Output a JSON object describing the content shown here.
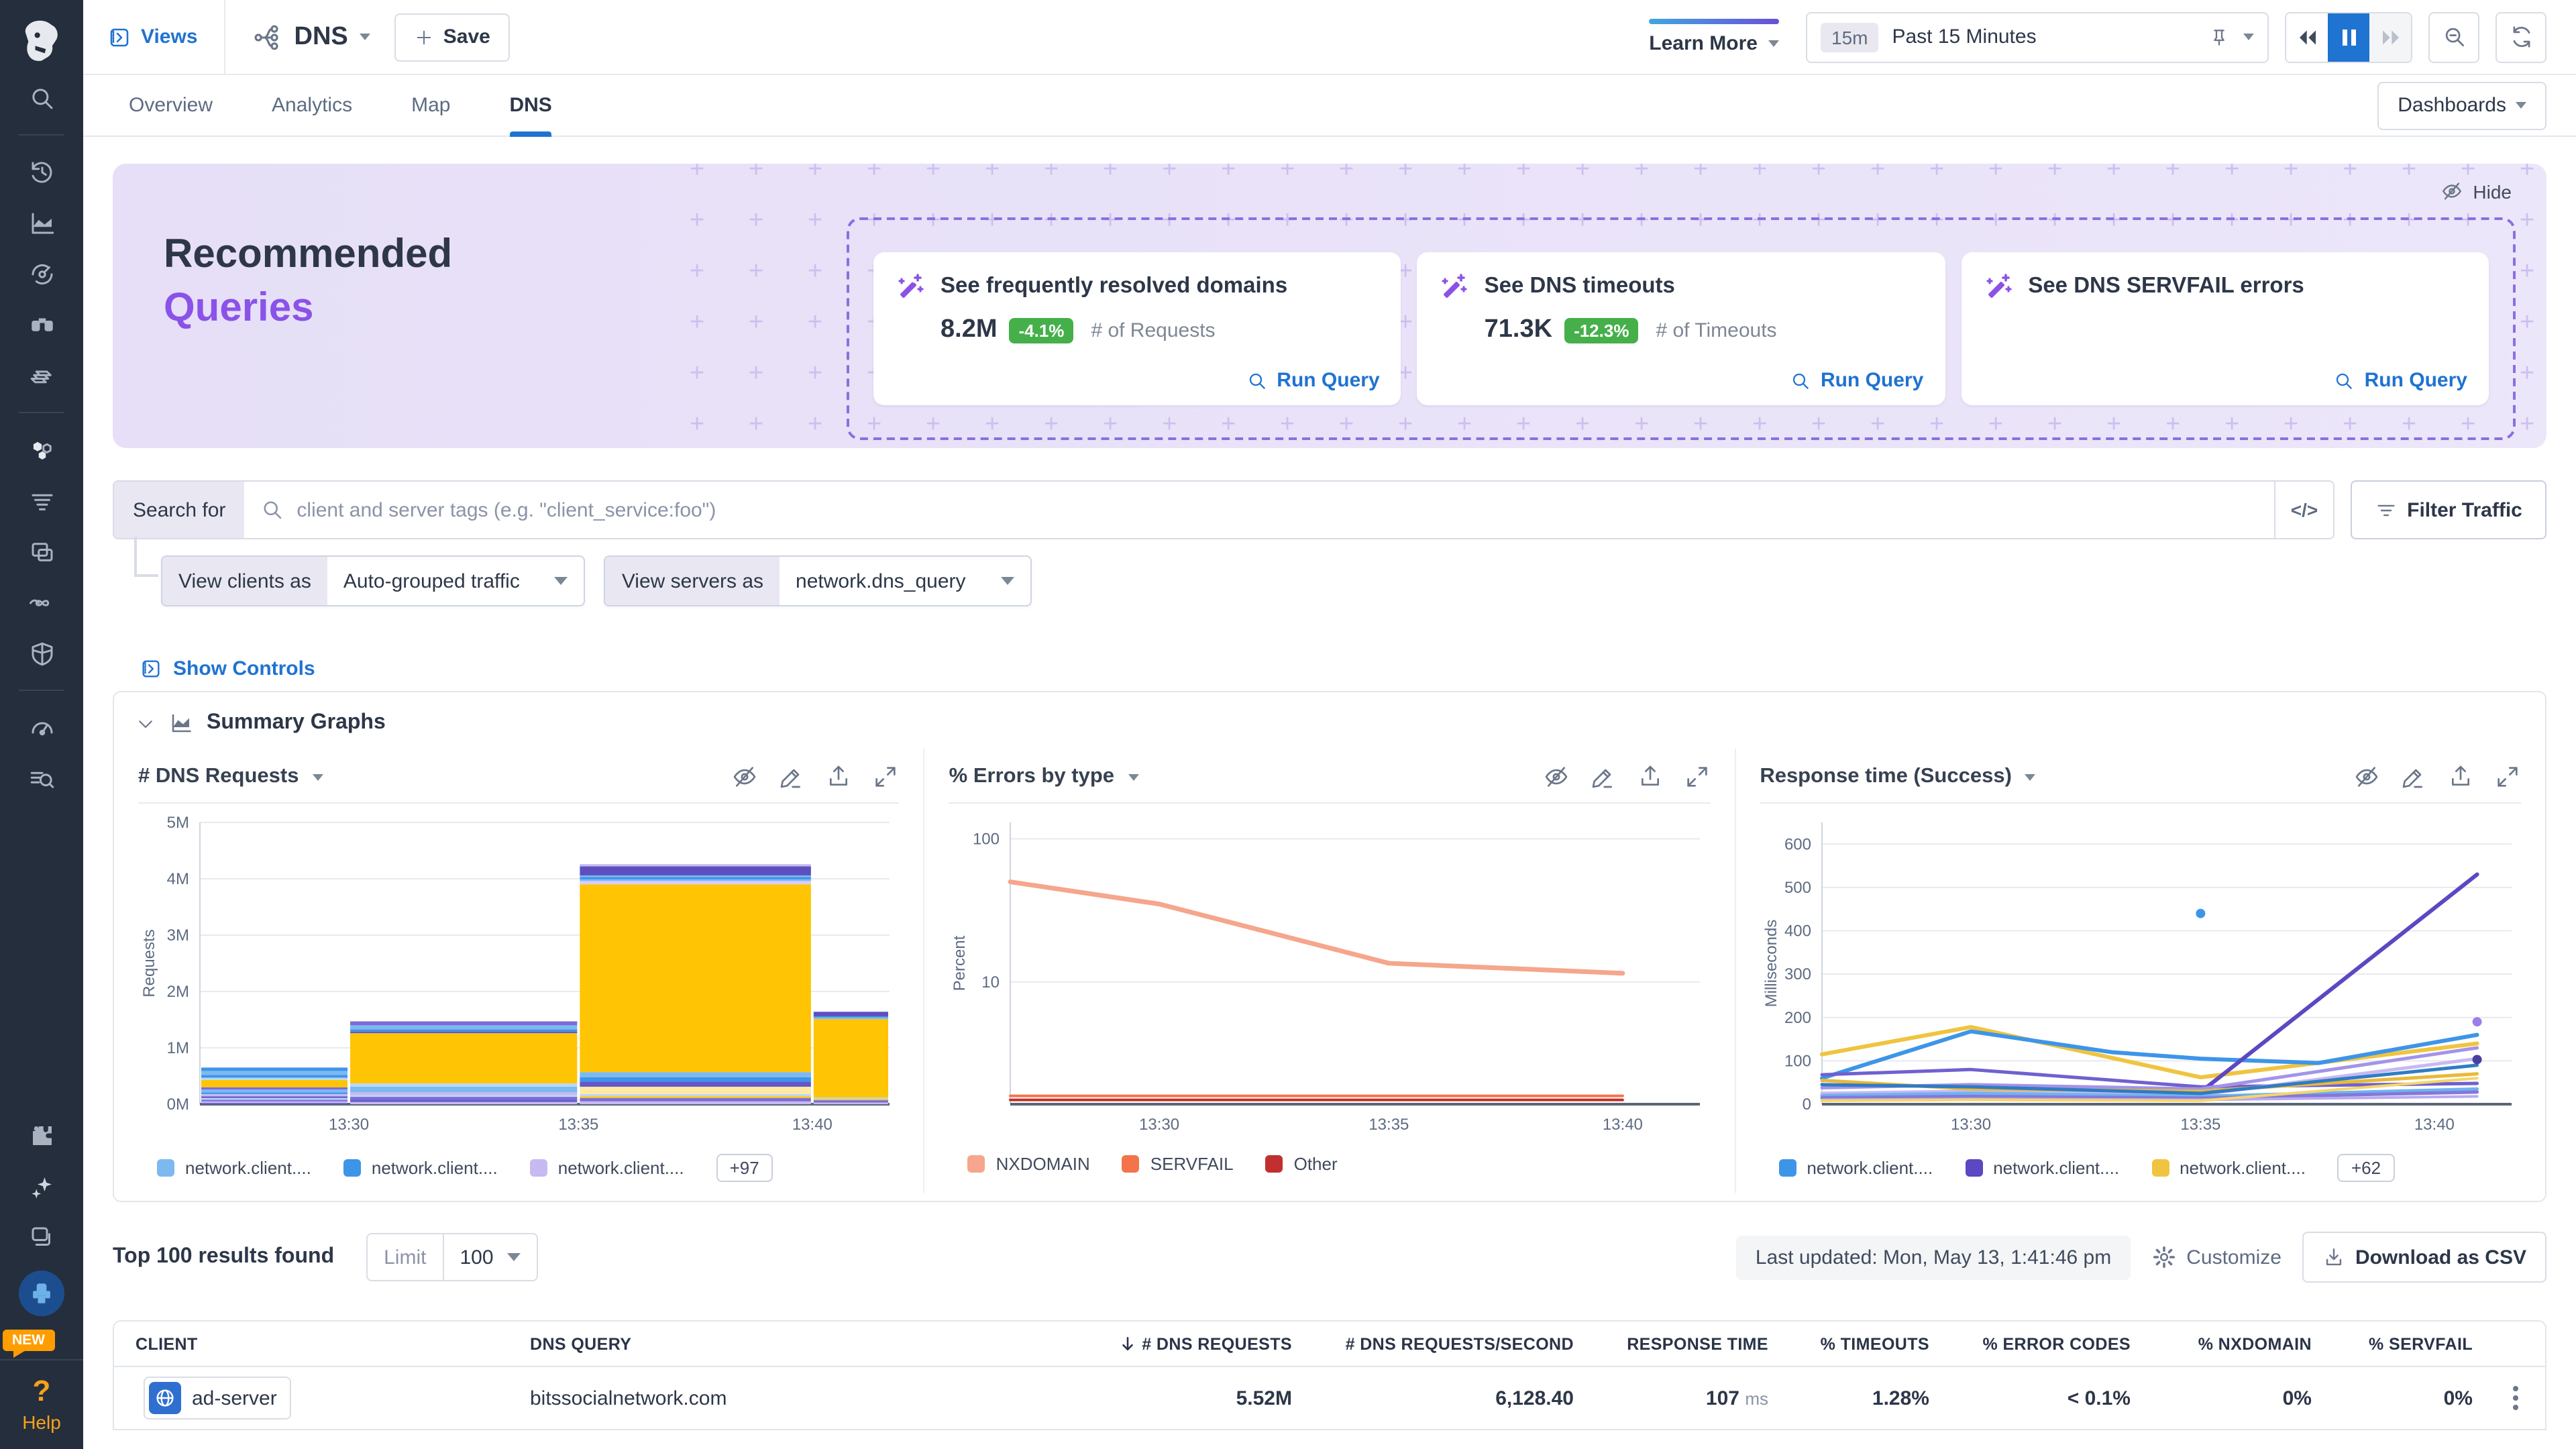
{
  "topbar": {
    "views_label": "Views",
    "view_name": "DNS",
    "save_label": "Save",
    "learn_more_label": "Learn More",
    "time_duration": "15m",
    "time_label": "Past 15 Minutes"
  },
  "tabs": {
    "items": [
      "Overview",
      "Analytics",
      "Map",
      "DNS"
    ],
    "active": "DNS",
    "dashboards_label": "Dashboards"
  },
  "banner": {
    "title_line1": "Recommended",
    "title_line2": "Queries",
    "hide_label": "Hide",
    "cards": [
      {
        "title": "See frequently resolved domains",
        "value": "8.2M",
        "delta": "-4.1%",
        "metric_label": "# of Requests",
        "action_label": "Run Query"
      },
      {
        "title": "See DNS timeouts",
        "value": "71.3K",
        "delta": "-12.3%",
        "metric_label": "# of Timeouts",
        "action_label": "Run Query"
      },
      {
        "title": "See DNS SERVFAIL errors",
        "value": "",
        "delta": "",
        "metric_label": "",
        "action_label": "Run Query"
      }
    ]
  },
  "search": {
    "label": "Search for",
    "placeholder": "client and server tags (e.g. \"client_service:foo\")",
    "code_button": "</>",
    "filter_button": "Filter Traffic",
    "view_clients_label": "View clients as",
    "view_clients_value": "Auto-grouped traffic",
    "view_servers_label": "View servers as",
    "view_servers_value": "network.dns_query"
  },
  "controls": {
    "show_controls": "Show Controls",
    "summary_graphs": "Summary Graphs"
  },
  "chart_data": [
    {
      "type": "bar",
      "title": "# DNS Requests",
      "ylabel": "Requests",
      "ylim": [
        0,
        5
      ],
      "yticks": [
        {
          "v": 0,
          "label": "0M"
        },
        {
          "v": 1,
          "label": "1M"
        },
        {
          "v": 2,
          "label": "2M"
        },
        {
          "v": 3,
          "label": "3M"
        },
        {
          "v": 4,
          "label": "4M"
        },
        {
          "v": 5,
          "label": "5M"
        }
      ],
      "xticks": [
        {
          "label": "13:30",
          "f": 0.216
        },
        {
          "label": "13:35",
          "f": 0.549
        },
        {
          "label": "13:40",
          "f": 0.888
        }
      ],
      "bar_edges": [
        0,
        0.216,
        0.549,
        0.888,
        1.0
      ],
      "bars": [
        {
          "segments": [
            [
              "#6457c9",
              0.02
            ],
            [
              "#c7b9f2",
              0.03
            ],
            [
              "#7b6bd6",
              0.03
            ],
            [
              "#b7d8f7",
              0.03
            ],
            [
              "#6457c9",
              0.03
            ],
            [
              "#c7b9f2",
              0.04
            ],
            [
              "#3d95e8",
              0.03
            ],
            [
              "#7db9f0",
              0.05
            ],
            [
              "#7b6bd6",
              0.04
            ],
            [
              "#ffc403",
              0.13
            ],
            [
              "#b7d8f7",
              0.04
            ],
            [
              "#3d95e8",
              0.05
            ],
            [
              "#7db9f0",
              0.07
            ],
            [
              "#3d95e8",
              0.06
            ]
          ]
        },
        {
          "segments": [
            [
              "#c7b9f2",
              0.04
            ],
            [
              "#6457c9",
              0.04
            ],
            [
              "#7b6bd6",
              0.05
            ],
            [
              "#b7d8f7",
              0.03
            ],
            [
              "#c7b9f2",
              0.05
            ],
            [
              "#7db9f0",
              0.1
            ],
            [
              "#b7d8f7",
              0.06
            ],
            [
              "#ffc403",
              0.89
            ],
            [
              "#6457c9",
              0.03
            ],
            [
              "#3d95e8",
              0.04
            ],
            [
              "#7db9f0",
              0.07
            ],
            [
              "#7b6bd6",
              0.07
            ]
          ]
        },
        {
          "segments": [
            [
              "#c7b9f2",
              0.05
            ],
            [
              "#7b6bd6",
              0.06
            ],
            [
              "#ffc403",
              0.03
            ],
            [
              "#b7d8f7",
              0.04
            ],
            [
              "#ffe9a3",
              0.13
            ],
            [
              "#6457c9",
              0.09
            ],
            [
              "#3d95e8",
              0.08
            ],
            [
              "#7db9f0",
              0.09
            ],
            [
              "#ffc403",
              3.33
            ],
            [
              "#d9cdf6",
              0.06
            ],
            [
              "#7db9f0",
              0.03
            ],
            [
              "#3d95e8",
              0.04
            ],
            [
              "#7db9f0",
              0.03
            ],
            [
              "#5c50c0",
              0.16
            ],
            [
              "#c7b9f2",
              0.04
            ]
          ]
        },
        {
          "segments": [
            [
              "#c7b9f2",
              0.03
            ],
            [
              "#7b6bd6",
              0.04
            ],
            [
              "#ffc403",
              0.02
            ],
            [
              "#b7d8f7",
              0.03
            ],
            [
              "#ffc403",
              1.39
            ],
            [
              "#7db9f0",
              0.03
            ],
            [
              "#3d95e8",
              0.02
            ],
            [
              "#5c50c0",
              0.08
            ]
          ]
        }
      ],
      "legend": {
        "entries": [
          {
            "label": "network.client....",
            "color": "#7db9f0"
          },
          {
            "label": "network.client....",
            "color": "#3d95e8"
          },
          {
            "label": "network.client....",
            "color": "#c7b9f2"
          }
        ],
        "more": "+97"
      }
    },
    {
      "type": "line_log",
      "title": "% Errors by type",
      "ylabel": "Percent",
      "ylim_log": [
        1.4,
        130
      ],
      "yticks": [
        {
          "v": 10,
          "label": "10"
        },
        {
          "v": 100,
          "label": "100"
        }
      ],
      "xticks": [
        {
          "label": "13:30",
          "f": 0.216
        },
        {
          "label": "13:35",
          "f": 0.549
        },
        {
          "label": "13:40",
          "f": 0.888
        }
      ],
      "series": [
        {
          "name": "NXDOMAIN",
          "color": "#f5a68c",
          "width": 3.5,
          "points": [
            [
              0,
              50
            ],
            [
              0.216,
              35
            ],
            [
              0.549,
              13.5
            ],
            [
              0.888,
              11.5
            ]
          ]
        },
        {
          "name": "SERVFAIL",
          "color": "#f3744b",
          "width": 2,
          "points": [
            [
              0,
              1.6
            ],
            [
              0.888,
              1.6
            ]
          ]
        },
        {
          "name": "Other",
          "color": "#c22f2f",
          "width": 2,
          "points": [
            [
              0,
              1.5
            ],
            [
              0.888,
              1.5
            ]
          ]
        }
      ],
      "legend": {
        "entries": [
          {
            "label": "NXDOMAIN",
            "color": "#f5a68c"
          },
          {
            "label": "SERVFAIL",
            "color": "#f3744b"
          },
          {
            "label": "Other",
            "color": "#c22f2f"
          }
        ],
        "more": ""
      }
    },
    {
      "type": "line",
      "title": "Response time (Success)",
      "ylabel": "Milliseconds",
      "ylim": [
        0,
        650
      ],
      "yticks": [
        {
          "v": 0,
          "label": "0"
        },
        {
          "v": 100,
          "label": "100"
        },
        {
          "v": 200,
          "label": "200"
        },
        {
          "v": 300,
          "label": "300"
        },
        {
          "v": 400,
          "label": "400"
        },
        {
          "v": 500,
          "label": "500"
        },
        {
          "v": 600,
          "label": "600"
        }
      ],
      "xticks": [
        {
          "label": "13:30",
          "f": 0.216
        },
        {
          "label": "13:35",
          "f": 0.549
        },
        {
          "label": "13:40",
          "f": 0.888
        }
      ],
      "series": [
        {
          "color": "#f0c440",
          "width": 3,
          "points": [
            [
              0,
              115
            ],
            [
              0.216,
              178
            ],
            [
              0.549,
              62
            ],
            [
              0.95,
              140
            ]
          ]
        },
        {
          "color": "#3d95e8",
          "width": 3,
          "points": [
            [
              0,
              60
            ],
            [
              0.216,
              168
            ],
            [
              0.42,
              120
            ],
            [
              0.549,
              105
            ],
            [
              0.72,
              95
            ],
            [
              0.95,
              160
            ]
          ]
        },
        {
          "color": "#5b48c2",
          "width": 3,
          "points": [
            [
              0.549,
              28
            ],
            [
              0.95,
              530
            ]
          ]
        },
        {
          "color": "#6f61cf",
          "width": 2.5,
          "points": [
            [
              0,
              68
            ],
            [
              0.216,
              80
            ],
            [
              0.549,
              40
            ],
            [
              0.95,
              48
            ]
          ]
        },
        {
          "color": "#a393e8",
          "width": 2.5,
          "points": [
            [
              0,
              38
            ],
            [
              0.216,
              45
            ],
            [
              0.549,
              35
            ],
            [
              0.95,
              130
            ]
          ]
        },
        {
          "color": "#c7b9f2",
          "width": 2.5,
          "points": [
            [
              0,
              25
            ],
            [
              0.216,
              30
            ],
            [
              0.549,
              22
            ],
            [
              0.95,
              105
            ]
          ]
        },
        {
          "color": "#e8b93a",
          "width": 2.5,
          "points": [
            [
              0,
              55
            ],
            [
              0.216,
              35
            ],
            [
              0.549,
              30
            ],
            [
              0.95,
              70
            ]
          ]
        },
        {
          "color": "#6fb3f0",
          "width": 2.5,
          "points": [
            [
              0,
              20
            ],
            [
              0.216,
              25
            ],
            [
              0.549,
              18
            ],
            [
              0.95,
              35
            ]
          ]
        },
        {
          "color": "#8578d8",
          "width": 2.5,
          "points": [
            [
              0,
              15
            ],
            [
              0.216,
              18
            ],
            [
              0.549,
              14
            ],
            [
              0.95,
              28
            ]
          ]
        },
        {
          "color": "#b9aaf0",
          "width": 2,
          "points": [
            [
              0,
              10
            ],
            [
              0.216,
              12
            ],
            [
              0.549,
              10
            ],
            [
              0.95,
              18
            ]
          ]
        },
        {
          "color": "#2f7cc4",
          "width": 2.5,
          "points": [
            [
              0,
              45
            ],
            [
              0.216,
              40
            ],
            [
              0.549,
              25
            ],
            [
              0.95,
              90
            ]
          ]
        },
        {
          "color": "#f6d56a",
          "width": 2,
          "points": [
            [
              0,
              8
            ],
            [
              0.216,
              10
            ],
            [
              0.549,
              8
            ],
            [
              0.95,
              60
            ]
          ]
        }
      ],
      "dots": [
        {
          "f": 0.549,
          "v": 440,
          "color": "#3d95e8"
        },
        {
          "f": 0.95,
          "v": 190,
          "color": "#9b7fe8"
        },
        {
          "f": 0.95,
          "v": 103,
          "color": "#4a3fa0"
        }
      ],
      "legend": {
        "entries": [
          {
            "label": "network.client....",
            "color": "#3d95e8"
          },
          {
            "label": "network.client....",
            "color": "#5b48c2"
          },
          {
            "label": "network.client....",
            "color": "#f0c440"
          }
        ],
        "more": "+62"
      }
    }
  ],
  "table": {
    "summary": "Top 100 results found",
    "limit_label": "Limit",
    "limit_value": "100",
    "last_updated": "Last updated: Mon, May 13, 1:41:46 pm",
    "customize_label": "Customize",
    "download_label": "Download as CSV",
    "columns": [
      "CLIENT",
      "DNS QUERY",
      "# DNS REQUESTS",
      "# DNS REQUESTS/SECOND",
      "RESPONSE TIME",
      "% TIMEOUTS",
      "% ERROR CODES",
      "% NXDOMAIN",
      "% SERVFAIL"
    ],
    "sort_column": "# DNS REQUESTS",
    "rows": [
      {
        "client": "ad-server",
        "dns_query": "bitssocialnetwork.com",
        "requests": "5.52M",
        "rps": "6,128.40",
        "response_time": "107",
        "response_time_unit": "ms",
        "timeouts": "1.28%",
        "error_codes": "< 0.1%",
        "nxdomain": "0%",
        "servfail": "0%"
      }
    ]
  },
  "sidebar": {
    "icons_top": [
      "search"
    ],
    "icons_group1": [
      "history",
      "metrics",
      "watchdog",
      "apm",
      "infrastructure"
    ],
    "icons_group2": [
      "service-map",
      "logs",
      "rum",
      "synthetics",
      "security"
    ],
    "icons_group3": [
      "dashboards",
      "log-explorer"
    ],
    "icons_bottom": [
      "integrations",
      "copilot",
      "workspaces"
    ],
    "new_badge": "NEW",
    "help_q": "?",
    "help_label": "Help"
  },
  "colors": {
    "accent_blue": "#1f73d1",
    "purple": "#8b52e8",
    "green_badge": "#45b04a",
    "banner_bg": "#e8e2f8",
    "sidebar_bg": "#252e3d",
    "orange": "#ff9d00"
  }
}
